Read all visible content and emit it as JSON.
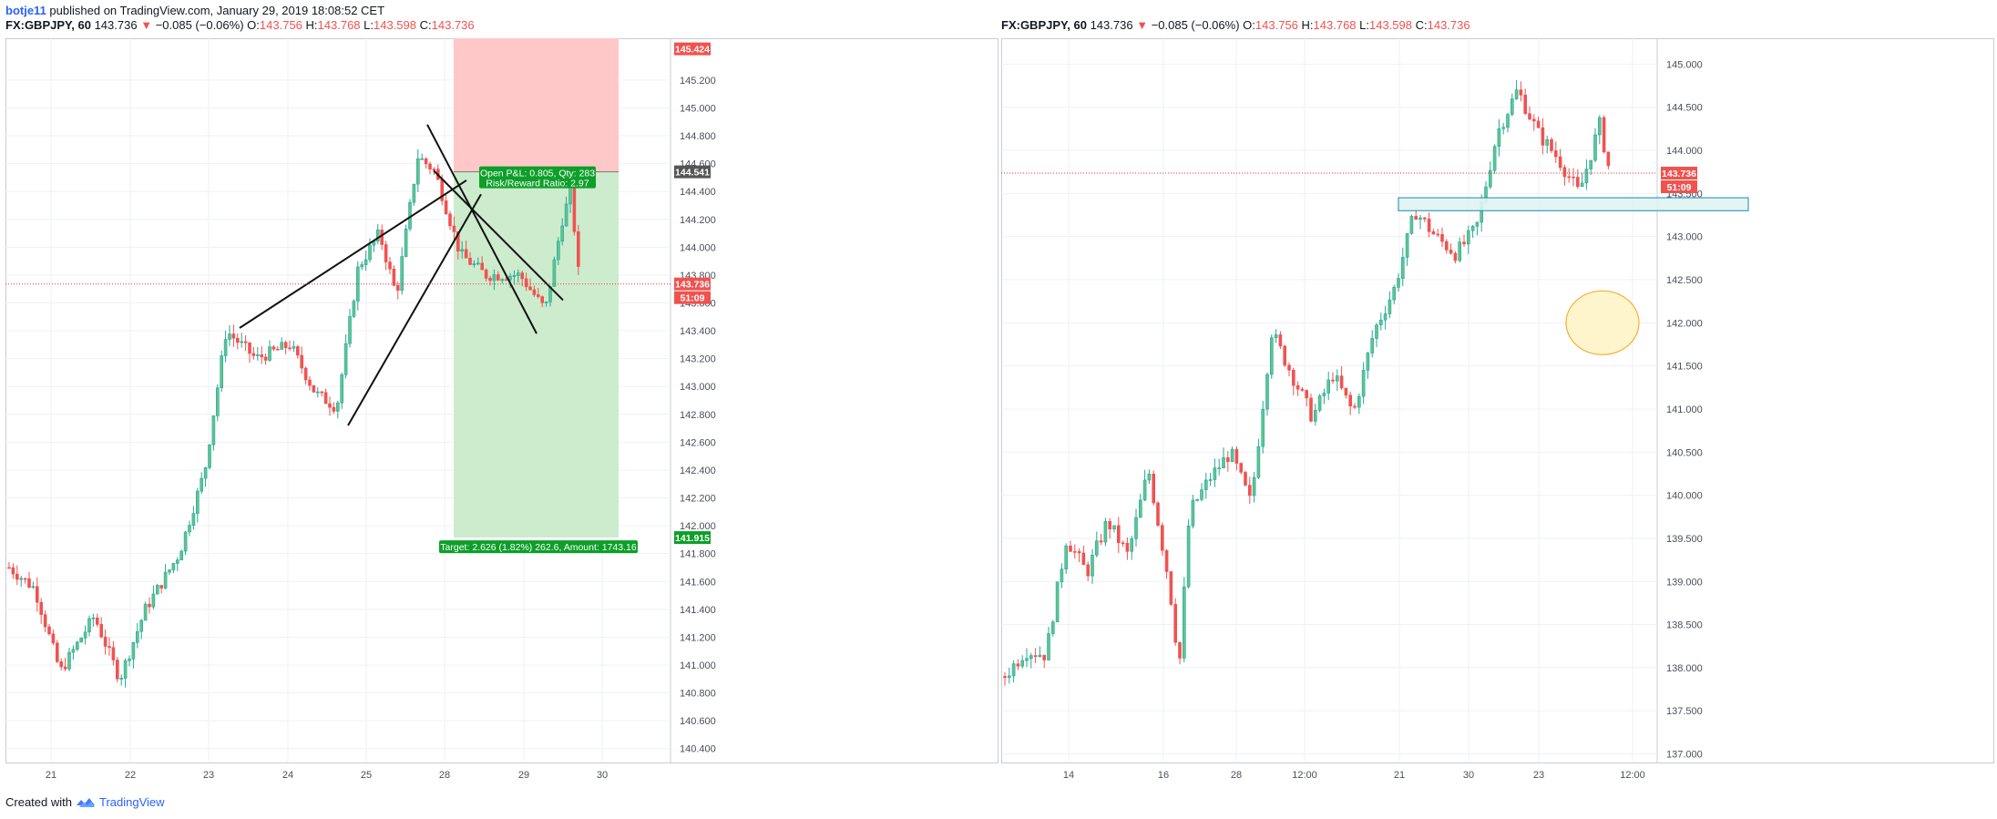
{
  "header": {
    "author": "botje11",
    "published_text": "published on TradingView.com, January 29, 2019 18:08:52 CET"
  },
  "left_symbol": {
    "ticker": "FX:GBPJPY, 60",
    "last": "143.736",
    "arrow": "▼",
    "change": "−0.085 (−0.06%)",
    "o_label": "O:",
    "o_value": "143.756",
    "h_label": "H:",
    "h_value": "143.768",
    "l_label": "L:",
    "l_value": "143.598",
    "c_label": "C:",
    "c_value": "143.736"
  },
  "right_symbol": {
    "ticker": "FX:GBPJPY, 60",
    "last": "143.736",
    "arrow": "▼",
    "change": "−0.085 (−0.06%)",
    "o_label": "O:",
    "o_value": "143.756",
    "h_label": "H:",
    "h_value": "143.768",
    "l_label": "L:",
    "l_value": "143.598",
    "c_label": "C:",
    "c_value": "143.736"
  },
  "footer": {
    "created_with": "Created with",
    "brand": "TradingView"
  },
  "colors": {
    "up": "#26a69a",
    "up_fill": "#5fc58f",
    "down": "#ef5350",
    "stop_zone": "#ffc8c8",
    "target_zone": "#cdeccd",
    "label_green": "#0d9f29",
    "grid": "#eef1f6",
    "price_line": "#e53935"
  },
  "chart_data": [
    {
      "type": "candlestick",
      "name": "left",
      "ylim": [
        140.3,
        145.5
      ],
      "x_ticks": [
        "21",
        "22",
        "23",
        "24",
        "25",
        "28",
        "29",
        "30"
      ],
      "y_ticks": [
        "145.200",
        "145.000",
        "144.800",
        "144.600",
        "144.400",
        "144.200",
        "144.000",
        "143.800",
        "143.600",
        "143.400",
        "143.200",
        "143.000",
        "142.800",
        "142.600",
        "142.400",
        "142.200",
        "142.000",
        "141.800",
        "141.600",
        "141.400",
        "141.200",
        "141.000",
        "140.800",
        "140.600",
        "140.400"
      ],
      "last_price_label": "143.736",
      "countdown": "51:09",
      "entry_label": "144.541",
      "target_price_label": "141.915",
      "stop_price_label": "145.424",
      "position": {
        "entry": 144.541,
        "stop": 145.424,
        "target": 141.915,
        "pnl_text": "Open P&L: 0.805, Qty: 283",
        "rr_text": "Risk/Reward Ratio: 2.97",
        "target_text": "Target: 2.626 (1.82%) 262.6, Amount: 1743.16"
      },
      "lines": [
        {
          "from": [
            "23.4",
            143.42
          ],
          "to": [
            "25.75",
            144.48
          ]
        },
        {
          "from": [
            "24.8",
            142.72
          ],
          "to": [
            "26.25",
            144.38
          ]
        },
        {
          "from": [
            "25.7",
            144.88
          ],
          "to": [
            "27.35",
            143.38
          ]
        },
        {
          "from": [
            "26.55",
            144.55
          ],
          "to": [
            "27.85",
            143.62
          ]
        }
      ],
      "anchors": [
        {
          "t": "21",
          "v": 141.7
        },
        {
          "t": "21.3",
          "v": 141.55
        },
        {
          "t": "21.6",
          "v": 140.95
        },
        {
          "t": "22",
          "v": 141.35
        },
        {
          "t": "22.3",
          "v": 140.9
        },
        {
          "t": "22.6",
          "v": 141.4
        },
        {
          "t": "23",
          "v": 141.8
        },
        {
          "t": "23.3",
          "v": 142.4
        },
        {
          "t": "23.55",
          "v": 143.4
        },
        {
          "t": "23.9",
          "v": 143.2
        },
        {
          "t": "24.3",
          "v": 143.3
        },
        {
          "t": "24.6",
          "v": 142.95
        },
        {
          "t": "24.85",
          "v": 142.85
        },
        {
          "t": "25.1",
          "v": 143.85
        },
        {
          "t": "25.35",
          "v": 144.1
        },
        {
          "t": "25.55",
          "v": 143.65
        },
        {
          "t": "25.8",
          "v": 144.65
        },
        {
          "t": "26.0",
          "v": 144.55
        },
        {
          "t": "26.3",
          "v": 143.95
        },
        {
          "t": "26.6",
          "v": 143.8
        },
        {
          "t": "27.0",
          "v": 143.8
        },
        {
          "t": "27.3",
          "v": 143.55
        },
        {
          "t": "27.5",
          "v": 144.2
        },
        {
          "t": "27.6",
          "v": 144.4
        },
        {
          "t": "27.7",
          "v": 143.74
        }
      ],
      "x_map": {
        "21": 50,
        "22": 137,
        "23": 223,
        "24": 310,
        "25": 396,
        "28": 482,
        "29": 569,
        "30": 655
      }
    },
    {
      "type": "candlestick",
      "name": "right",
      "ylim": [
        136.9,
        145.3
      ],
      "x_ticks": [
        "14",
        "16",
        "12:00",
        "21",
        "23",
        "12:00",
        "28",
        "30"
      ],
      "y_ticks": [
        "145.000",
        "144.500",
        "144.000",
        "143.500",
        "143.000",
        "142.500",
        "142.000",
        "141.500",
        "141.000",
        "140.500",
        "140.000",
        "139.500",
        "139.000",
        "138.500",
        "138.000",
        "137.500",
        "137.000"
      ],
      "last_price_label": "143.736",
      "countdown": "51:09",
      "zone": {
        "top": 143.45,
        "bottom": 143.3
      },
      "anchors": [
        {
          "t": "8",
          "v": 137.9
        },
        {
          "t": "9",
          "v": 138.2
        },
        {
          "t": "10",
          "v": 138.15
        },
        {
          "t": "11",
          "v": 139.5
        },
        {
          "t": "12",
          "v": 139.1
        },
        {
          "t": "13",
          "v": 139.7
        },
        {
          "t": "14",
          "v": 139.3
        },
        {
          "t": "15",
          "v": 140.3
        },
        {
          "t": "16",
          "v": 139.0
        },
        {
          "t": "16.5",
          "v": 138.0
        },
        {
          "t": "17",
          "v": 139.8
        },
        {
          "t": "18",
          "v": 140.2
        },
        {
          "t": "19",
          "v": 140.5
        },
        {
          "t": "20",
          "v": 139.9
        },
        {
          "t": "21",
          "v": 141.9
        },
        {
          "t": "22",
          "v": 141.4
        },
        {
          "t": "23",
          "v": 140.9
        },
        {
          "t": "24",
          "v": 141.4
        },
        {
          "t": "25",
          "v": 140.95
        },
        {
          "t": "26",
          "v": 141.9
        },
        {
          "t": "27",
          "v": 142.4
        },
        {
          "t": "28",
          "v": 143.3
        },
        {
          "t": "29",
          "v": 143.0
        },
        {
          "t": "30",
          "v": 142.8
        },
        {
          "t": "31",
          "v": 143.1
        },
        {
          "t": "32",
          "v": 144.2
        },
        {
          "t": "33",
          "v": 144.7
        },
        {
          "t": "34",
          "v": 144.2
        },
        {
          "t": "35",
          "v": 143.9
        },
        {
          "t": "36",
          "v": 143.5
        },
        {
          "t": "37",
          "v": 144.3
        },
        {
          "t": "37.5",
          "v": 143.74
        }
      ],
      "x_map": {
        "14": 74,
        "16": 178,
        "12:00": 258,
        "21": 333,
        "23": 437,
        "12:00b": 513,
        "28": 590,
        "30": 693
      }
    }
  ]
}
